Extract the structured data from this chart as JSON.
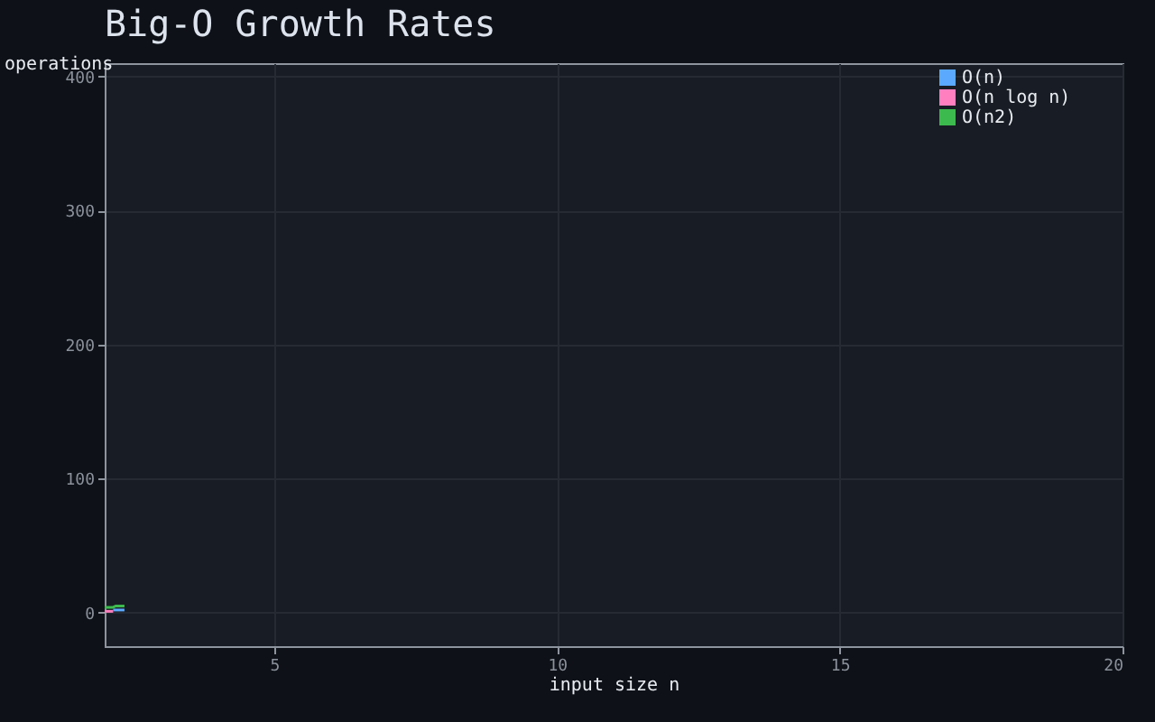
{
  "chart_data": {
    "type": "line",
    "title": "Big-O Growth Rates",
    "xlabel": "input size n",
    "ylabel": "operations",
    "xlim": [
      2,
      20
    ],
    "xticks": [
      5,
      10,
      15,
      20
    ],
    "ylim": [
      -25,
      410
    ],
    "yticks": [
      0,
      100,
      200,
      300,
      400
    ],
    "grid": true,
    "legend": "top right",
    "series": [
      {
        "name": "O(n)",
        "color": "#5aa9ff",
        "x": [
          2.15,
          2.35
        ],
        "values": [
          2,
          2
        ]
      },
      {
        "name": "O(n log n)",
        "color": "#ff7fbf",
        "x": [
          2,
          2.15
        ],
        "values": [
          1,
          1
        ]
      },
      {
        "name": "O(n2)",
        "color": "#3dba4e",
        "x": [
          2,
          2.15,
          2.2,
          2.35
        ],
        "values": [
          4,
          4,
          5,
          5
        ]
      }
    ]
  }
}
